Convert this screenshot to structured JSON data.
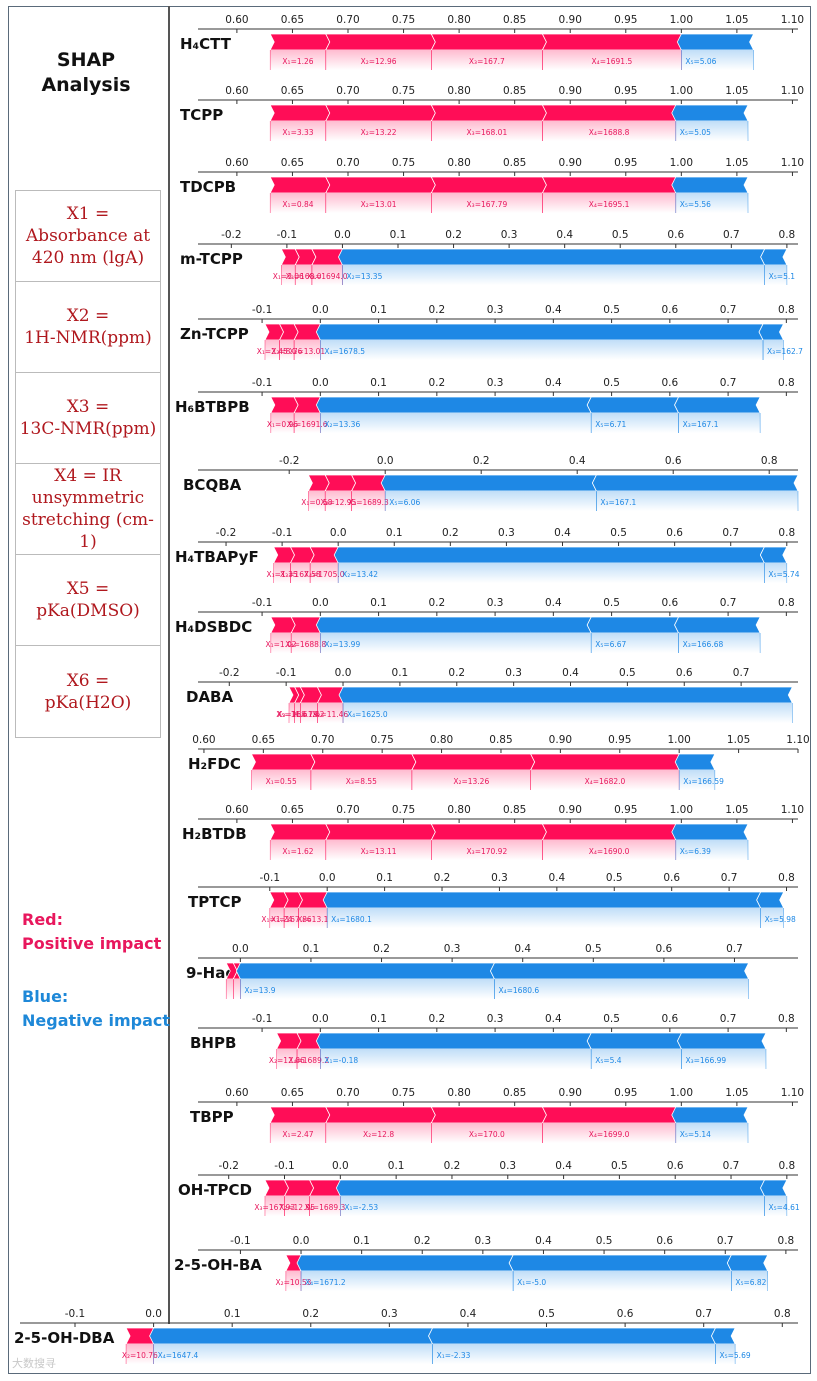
{
  "title": [
    "SHAP",
    "Analysis"
  ],
  "variables": [
    {
      "name": "X1 =",
      "line2": "Absorbance at",
      "line3": "420 nm (lgA)"
    },
    {
      "name": "X2 =",
      "line2": "1H-NMR(ppm)",
      "line3": ""
    },
    {
      "name": "X3 =",
      "line2": "13C-NMR(ppm)",
      "line3": ""
    },
    {
      "name": "X4 = IR",
      "line2": "unsymmetric",
      "line3": "stretching (cm-1)"
    },
    {
      "name": "X5 =",
      "line2": "pKa(DMSO)",
      "line3": ""
    },
    {
      "name": "X6 =",
      "line2": "pKa(H2O)",
      "line3": ""
    }
  ],
  "impact": {
    "red_title": "Red:",
    "red_text": "Positive impact",
    "blue_title": "Blue:",
    "blue_text": "Negative impact"
  },
  "watermark": "大数搜寻",
  "colors": {
    "positive": "#ff0d57",
    "negative": "#1e88e5",
    "pos_label": "#e8175d",
    "neg_label": "#1e88e5"
  },
  "chart_data": [
    {
      "type": "force",
      "name": "H₄CTT",
      "ticks": [
        0.6,
        0.65,
        0.7,
        0.75,
        0.8,
        0.85,
        0.9,
        0.95,
        1.0,
        1.05,
        1.1
      ],
      "xlim": [
        0.565,
        1.105
      ],
      "boundary": 1.0,
      "positive": [
        {
          "label": "X₁=1.26",
          "from": 0.63,
          "to": 0.68
        },
        {
          "label": "X₂=12.96",
          "from": 0.68,
          "to": 0.775
        },
        {
          "label": "X₃=167.7",
          "from": 0.775,
          "to": 0.875
        },
        {
          "label": "X₄=1691.5",
          "from": 0.875,
          "to": 1.0
        }
      ],
      "negative": [
        {
          "label": "X₅=5.06",
          "from": 1.0,
          "to": 1.065
        }
      ]
    },
    {
      "type": "force",
      "name": "TCPP",
      "ticks": [
        0.6,
        0.65,
        0.7,
        0.75,
        0.8,
        0.85,
        0.9,
        0.95,
        1.0,
        1.05,
        1.1
      ],
      "xlim": [
        0.565,
        1.105
      ],
      "boundary": 0.995,
      "positive": [
        {
          "label": "X₁=3.33",
          "from": 0.63,
          "to": 0.68
        },
        {
          "label": "X₂=13.22",
          "from": 0.68,
          "to": 0.775
        },
        {
          "label": "X₃=168.01",
          "from": 0.775,
          "to": 0.875
        },
        {
          "label": "X₄=1688.8",
          "from": 0.875,
          "to": 0.995
        }
      ],
      "negative": [
        {
          "label": "X₅=5.05",
          "from": 0.995,
          "to": 1.06
        }
      ]
    },
    {
      "type": "force",
      "name": "TDCPB",
      "ticks": [
        0.6,
        0.65,
        0.7,
        0.75,
        0.8,
        0.85,
        0.9,
        0.95,
        1.0,
        1.05,
        1.1
      ],
      "xlim": [
        0.565,
        1.105
      ],
      "boundary": 0.995,
      "positive": [
        {
          "label": "X₁=0.84",
          "from": 0.63,
          "to": 0.68
        },
        {
          "label": "X₂=13.01",
          "from": 0.68,
          "to": 0.775
        },
        {
          "label": "X₃=167.79",
          "from": 0.775,
          "to": 0.875
        },
        {
          "label": "X₄=1695.1",
          "from": 0.875,
          "to": 0.995
        }
      ],
      "negative": [
        {
          "label": "X₅=5.56",
          "from": 0.995,
          "to": 1.06
        }
      ]
    },
    {
      "type": "force",
      "name": "m-TCPP",
      "ticks": [
        -0.2,
        -0.1,
        0.0,
        0.1,
        0.2,
        0.3,
        0.4,
        0.5,
        0.6,
        0.7,
        0.8
      ],
      "xlim": [
        -0.26,
        0.82
      ],
      "boundary": 0.0,
      "positive": [
        {
          "label": "X₁=3.06",
          "from": -0.11,
          "to": -0.085
        },
        {
          "label": "X₃=168.0",
          "from": -0.085,
          "to": -0.055
        },
        {
          "label": "X₄=1694.0",
          "from": -0.055,
          "to": 0.0
        }
      ],
      "negative": [
        {
          "label": "X₂=13.35",
          "from": 0.0,
          "to": 0.76
        },
        {
          "label": "X₅=5.1",
          "from": 0.76,
          "to": 0.8
        }
      ]
    },
    {
      "type": "force",
      "name": "Zn-TCPP",
      "ticks": [
        -0.1,
        0.0,
        0.1,
        0.2,
        0.3,
        0.4,
        0.5,
        0.6,
        0.7,
        0.8
      ],
      "xlim": [
        -0.21,
        0.82
      ],
      "boundary": 0.0,
      "positive": [
        {
          "label": "X₁=2.45",
          "from": -0.095,
          "to": -0.07
        },
        {
          "label": "X₃=8.76",
          "from": -0.07,
          "to": -0.045
        },
        {
          "label": "X₂=13.01",
          "from": -0.045,
          "to": 0.0
        }
      ],
      "negative": [
        {
          "label": "X₄=1678.5",
          "from": 0.0,
          "to": 0.76
        },
        {
          "label": "X₃=162.7",
          "from": 0.76,
          "to": 0.795
        }
      ]
    },
    {
      "type": "force",
      "name": "H₆BTBPB",
      "ticks": [
        -0.1,
        0.0,
        0.1,
        0.2,
        0.3,
        0.4,
        0.5,
        0.6,
        0.7,
        0.8
      ],
      "xlim": [
        -0.21,
        0.82
      ],
      "boundary": 0.0,
      "positive": [
        {
          "label": "X₁=0.96",
          "from": -0.085,
          "to": -0.045
        },
        {
          "label": "X₄=1691.6",
          "from": -0.045,
          "to": 0.0
        }
      ],
      "negative": [
        {
          "label": "X₂=13.36",
          "from": 0.0,
          "to": 0.465
        },
        {
          "label": "X₅=6.71",
          "from": 0.465,
          "to": 0.615
        },
        {
          "label": "X₃=167.1",
          "from": 0.615,
          "to": 0.755
        }
      ]
    },
    {
      "type": "force",
      "name": "BCQBA",
      "ticks": [
        -0.2,
        0.0,
        0.2,
        0.4,
        0.6,
        0.8
      ],
      "xlim": [
        -0.39,
        0.86
      ],
      "boundary": 0.0,
      "positive": [
        {
          "label": "X₁=0.58",
          "from": -0.16,
          "to": -0.125
        },
        {
          "label": "X₂=12.95",
          "from": -0.125,
          "to": -0.07
        },
        {
          "label": "X₄=1689.3",
          "from": -0.07,
          "to": 0.0
        }
      ],
      "negative": [
        {
          "label": "X₅=6.06",
          "from": 0.0,
          "to": 0.44
        },
        {
          "label": "X₃=167.1",
          "from": 0.44,
          "to": 0.86
        }
      ]
    },
    {
      "type": "force",
      "name": "H₄TBAPyF",
      "ticks": [
        -0.2,
        -0.1,
        0.0,
        0.1,
        0.2,
        0.3,
        0.4,
        0.5,
        0.6,
        0.7,
        0.8
      ],
      "xlim": [
        -0.25,
        0.82
      ],
      "boundary": 0.0,
      "positive": [
        {
          "label": "X₁=1.35",
          "from": -0.115,
          "to": -0.085
        },
        {
          "label": "X₃=167.58",
          "from": -0.085,
          "to": -0.05
        },
        {
          "label": "X₄=1705.0",
          "from": -0.05,
          "to": 0.0
        }
      ],
      "negative": [
        {
          "label": "X₂=13.42",
          "from": 0.0,
          "to": 0.76
        },
        {
          "label": "X₅=5.74",
          "from": 0.76,
          "to": 0.8
        }
      ]
    },
    {
      "type": "force",
      "name": "H₄DSBDC",
      "ticks": [
        -0.1,
        0.0,
        0.1,
        0.2,
        0.3,
        0.4,
        0.5,
        0.6,
        0.7,
        0.8
      ],
      "xlim": [
        -0.21,
        0.82
      ],
      "boundary": 0.0,
      "positive": [
        {
          "label": "X₁=1.02",
          "from": -0.085,
          "to": -0.05
        },
        {
          "label": "X₄=1688.8",
          "from": -0.05,
          "to": 0.0
        }
      ],
      "negative": [
        {
          "label": "X₂=13.99",
          "from": 0.0,
          "to": 0.465
        },
        {
          "label": "X₅=6.67",
          "from": 0.465,
          "to": 0.615
        },
        {
          "label": "X₃=166.68",
          "from": 0.615,
          "to": 0.755
        }
      ]
    },
    {
      "type": "force",
      "name": "DABA",
      "ticks": [
        -0.2,
        -0.1,
        0.0,
        0.1,
        0.2,
        0.3,
        0.4,
        0.5,
        0.6,
        0.7
      ],
      "xlim": [
        -0.255,
        0.8
      ],
      "boundary": 0.0,
      "positive": [
        {
          "label": "X₅=11.6",
          "from": -0.095,
          "to": -0.085
        },
        {
          "label": "X₃=168.79",
          "from": -0.085,
          "to": -0.075
        },
        {
          "label": "X₁=1.42",
          "from": -0.075,
          "to": -0.045
        },
        {
          "label": "X₂=11.46",
          "from": -0.045,
          "to": 0.0
        }
      ],
      "negative": [
        {
          "label": "X₄=1625.0",
          "from": 0.0,
          "to": 0.79
        }
      ]
    },
    {
      "type": "force",
      "name": "H₂FDC",
      "ticks": [
        0.6,
        0.65,
        0.7,
        0.75,
        0.8,
        0.85,
        0.9,
        0.95,
        1.0,
        1.05,
        1.1
      ],
      "xlim": [
        0.595,
        1.1
      ],
      "boundary": 1.0,
      "positive": [
        {
          "label": "X₁=0.55",
          "from": 0.64,
          "to": 0.69
        },
        {
          "label": "X₃=8.55",
          "from": 0.69,
          "to": 0.775
        },
        {
          "label": "X₂=13.26",
          "from": 0.775,
          "to": 0.875
        },
        {
          "label": "X₄=1682.0",
          "from": 0.875,
          "to": 1.0
        }
      ],
      "negative": [
        {
          "label": "X₃=166.59",
          "from": 1.0,
          "to": 1.03
        }
      ]
    },
    {
      "type": "force",
      "name": "H₂BTDB",
      "ticks": [
        0.6,
        0.65,
        0.7,
        0.75,
        0.8,
        0.85,
        0.9,
        0.95,
        1.0,
        1.05,
        1.1
      ],
      "xlim": [
        0.565,
        1.105
      ],
      "boundary": 0.995,
      "positive": [
        {
          "label": "X₁=1.62",
          "from": 0.63,
          "to": 0.68
        },
        {
          "label": "X₂=13.11",
          "from": 0.68,
          "to": 0.775
        },
        {
          "label": "X₃=170.92",
          "from": 0.775,
          "to": 0.875
        },
        {
          "label": "X₄=1690.0",
          "from": 0.875,
          "to": 0.995
        }
      ],
      "negative": [
        {
          "label": "X₅=6.39",
          "from": 0.995,
          "to": 1.06
        }
      ]
    },
    {
      "type": "force",
      "name": "TPTCP",
      "ticks": [
        -0.1,
        0.0,
        0.1,
        0.2,
        0.3,
        0.4,
        0.5,
        0.6,
        0.7,
        0.8
      ],
      "xlim": [
        -0.225,
        0.82
      ],
      "boundary": 0.0,
      "positive": [
        {
          "label": "X₁=1.24",
          "from": -0.1,
          "to": -0.075
        },
        {
          "label": "X₃=167.86",
          "from": -0.075,
          "to": -0.05
        },
        {
          "label": "X₂=13.1",
          "from": -0.05,
          "to": 0.0
        }
      ],
      "negative": [
        {
          "label": "X₄=1680.1",
          "from": 0.0,
          "to": 0.755
        },
        {
          "label": "X₅=5.98",
          "from": 0.755,
          "to": 0.795
        }
      ]
    },
    {
      "type": "force",
      "name": "9-Haca",
      "ticks": [
        0.0,
        0.1,
        0.2,
        0.3,
        0.4,
        0.5,
        0.6,
        0.7
      ],
      "xlim": [
        -0.06,
        0.79
      ],
      "boundary": 0.0,
      "positive": [
        {
          "label": "",
          "from": -0.02,
          "to": -0.01
        },
        {
          "label": "",
          "from": -0.01,
          "to": 0.0
        }
      ],
      "negative": [
        {
          "label": "X₂=13.9",
          "from": 0.0,
          "to": 0.36
        },
        {
          "label": "X₄=1680.6",
          "from": 0.36,
          "to": 0.72
        }
      ]
    },
    {
      "type": "force",
      "name": "BHPB",
      "ticks": [
        -0.1,
        0.0,
        0.1,
        0.2,
        0.3,
        0.4,
        0.5,
        0.6,
        0.7,
        0.8
      ],
      "xlim": [
        -0.21,
        0.82
      ],
      "boundary": 0.0,
      "positive": [
        {
          "label": "X₂=12.86",
          "from": -0.075,
          "to": -0.04
        },
        {
          "label": "X₄=1689.2",
          "from": -0.04,
          "to": 0.0
        }
      ],
      "negative": [
        {
          "label": "X₁=-0.18",
          "from": 0.0,
          "to": 0.465
        },
        {
          "label": "X₅=5.4",
          "from": 0.465,
          "to": 0.62
        },
        {
          "label": "X₃=166.99",
          "from": 0.62,
          "to": 0.765
        }
      ]
    },
    {
      "type": "force",
      "name": "TBPP",
      "ticks": [
        0.6,
        0.65,
        0.7,
        0.75,
        0.8,
        0.85,
        0.9,
        0.95,
        1.0,
        1.05,
        1.1
      ],
      "xlim": [
        0.565,
        1.105
      ],
      "boundary": 0.995,
      "positive": [
        {
          "label": "X₁=2.47",
          "from": 0.63,
          "to": 0.68
        },
        {
          "label": "X₂=12.8",
          "from": 0.68,
          "to": 0.775
        },
        {
          "label": "X₃=170.0",
          "from": 0.775,
          "to": 0.875
        },
        {
          "label": "X₄=1699.0",
          "from": 0.875,
          "to": 0.995
        }
      ],
      "negative": [
        {
          "label": "X₅=5.14",
          "from": 0.995,
          "to": 1.06
        }
      ]
    },
    {
      "type": "force",
      "name": "OH-TPCD",
      "ticks": [
        -0.2,
        -0.1,
        0.0,
        0.1,
        0.2,
        0.3,
        0.4,
        0.5,
        0.6,
        0.7,
        0.8
      ],
      "xlim": [
        -0.255,
        0.82
      ],
      "boundary": 0.0,
      "positive": [
        {
          "label": "X₃=167.93",
          "from": -0.135,
          "to": -0.1
        },
        {
          "label": "X₂=12.95",
          "from": -0.1,
          "to": -0.055
        },
        {
          "label": "X₄=1689.3",
          "from": -0.055,
          "to": 0.0
        }
      ],
      "negative": [
        {
          "label": "X₁=-2.53",
          "from": 0.0,
          "to": 0.76
        },
        {
          "label": "X₅=4.61",
          "from": 0.76,
          "to": 0.8
        }
      ]
    },
    {
      "type": "force",
      "name": "2-5-OH-BA",
      "ticks": [
        -0.1,
        0.0,
        0.1,
        0.2,
        0.3,
        0.4,
        0.5,
        0.6,
        0.7,
        0.8
      ],
      "xlim": [
        -0.17,
        0.82
      ],
      "boundary": 0.0,
      "positive": [
        {
          "label": "X₂=10.53",
          "from": -0.025,
          "to": 0.0
        }
      ],
      "negative": [
        {
          "label": "X₄=1671.2",
          "from": 0.0,
          "to": 0.35
        },
        {
          "label": "X₁=-5.0",
          "from": 0.35,
          "to": 0.71
        },
        {
          "label": "X₅=6.82",
          "from": 0.71,
          "to": 0.77
        }
      ]
    },
    {
      "type": "force",
      "name": "2-5-OH-DBA",
      "ticks": [
        -0.1,
        0.0,
        0.1,
        0.2,
        0.3,
        0.4,
        0.5,
        0.6,
        0.7,
        0.8
      ],
      "xlim": [
        -0.17,
        0.82
      ],
      "boundary": 0.0,
      "positive": [
        {
          "label": "X₂=10.76",
          "from": -0.035,
          "to": 0.0
        }
      ],
      "negative": [
        {
          "label": "X₄=1647.4",
          "from": 0.0,
          "to": 0.355
        },
        {
          "label": "X₁=-2.33",
          "from": 0.355,
          "to": 0.715
        },
        {
          "label": "X₅=5.69",
          "from": 0.715,
          "to": 0.74
        }
      ]
    }
  ]
}
